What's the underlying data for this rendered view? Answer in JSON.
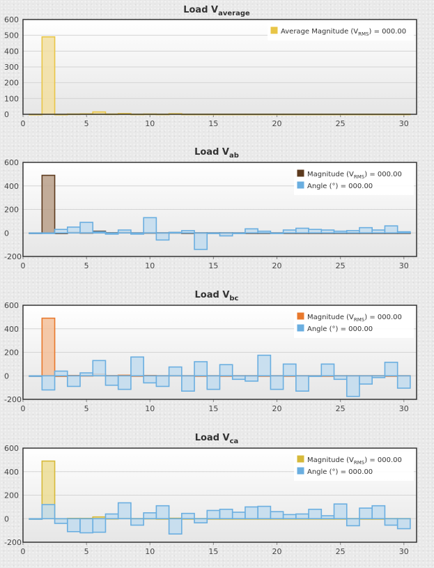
{
  "chart_data": [
    {
      "type": "bar",
      "title": "Load V",
      "title_sub": "average",
      "xlim": [
        0,
        31
      ],
      "ylim": [
        0,
        600
      ],
      "yticks": [
        0,
        100,
        200,
        300,
        400,
        500,
        600
      ],
      "xticks": [
        0,
        5,
        10,
        15,
        20,
        25,
        30
      ],
      "legend_position": "top-right",
      "series": [
        {
          "name": "Average Magnitude (VRMS) = 000.00",
          "legend_label": "Average Magnitude (V",
          "legend_sub": "RMS",
          "legend_suffix": ") = 000.00",
          "color": "#e8c547",
          "fill": "#f2dfa2",
          "values": [
            0,
            490,
            0,
            2,
            3,
            15,
            2,
            5,
            1,
            2,
            1,
            4,
            1,
            1,
            1,
            1,
            1,
            1,
            1,
            1,
            1,
            1,
            1,
            1,
            1,
            1,
            1,
            1,
            1,
            1,
            1
          ]
        }
      ]
    },
    {
      "type": "bar",
      "title": "Load V",
      "title_sub": "ab",
      "xlim": [
        0,
        31
      ],
      "ylim": [
        -200,
        600
      ],
      "yticks": [
        -200,
        0,
        200,
        400,
        600
      ],
      "xticks": [
        0,
        5,
        10,
        15,
        20,
        25,
        30
      ],
      "legend_position": "top-right",
      "series": [
        {
          "name": "Magnitude (VRMS) = 000.00",
          "legend_label": "Magnitude (V",
          "legend_sub": "RMS",
          "legend_suffix": ") = 000.00",
          "color": "#5c3a1e",
          "fill": "#b89f88",
          "values": [
            0,
            490,
            0,
            5,
            3,
            15,
            2,
            5,
            1,
            3,
            1,
            4,
            1,
            1,
            1,
            1,
            1,
            1,
            1,
            1,
            1,
            1,
            1,
            1,
            1,
            1,
            1,
            1,
            1,
            1,
            1
          ]
        },
        {
          "name": "Angle (°) = 000.00",
          "legend_label": "Angle (°) = 000.00",
          "color": "#6aaee0",
          "fill": "#c2dcef",
          "values": [
            0,
            0,
            30,
            50,
            90,
            10,
            -10,
            25,
            -10,
            130,
            -60,
            5,
            20,
            -140,
            0,
            -25,
            0,
            35,
            15,
            0,
            25,
            40,
            30,
            25,
            15,
            20,
            45,
            25,
            60,
            10,
            5
          ]
        }
      ]
    },
    {
      "type": "bar",
      "title": "Load V",
      "title_sub": "bc",
      "xlim": [
        0,
        31
      ],
      "ylim": [
        -200,
        600
      ],
      "yticks": [
        -200,
        0,
        200,
        400,
        600
      ],
      "xticks": [
        0,
        5,
        10,
        15,
        20,
        25,
        30
      ],
      "legend_position": "top-right",
      "series": [
        {
          "name": "Magnitude (VRMS) = 000.00",
          "legend_label": "Magnitude (V",
          "legend_sub": "RMS",
          "legend_suffix": ") = 000.00",
          "color": "#e8782c",
          "fill": "#f3c09a",
          "values": [
            0,
            490,
            0,
            3,
            3,
            15,
            2,
            5,
            1,
            3,
            1,
            4,
            1,
            1,
            1,
            1,
            1,
            1,
            1,
            1,
            1,
            1,
            1,
            1,
            1,
            1,
            1,
            1,
            1,
            1,
            1
          ]
        },
        {
          "name": "Angle (°) = 000.00",
          "legend_label": "Angle (°) = 000.00",
          "color": "#6aaee0",
          "fill": "#c2dcef",
          "values": [
            0,
            -120,
            40,
            -90,
            25,
            130,
            -80,
            -115,
            160,
            -60,
            -90,
            75,
            -130,
            120,
            -115,
            95,
            -30,
            -45,
            175,
            -115,
            100,
            -130,
            0,
            100,
            -30,
            -175,
            -70,
            -15,
            115,
            -105,
            115
          ]
        }
      ]
    },
    {
      "type": "bar",
      "title": "Load V",
      "title_sub": "ca",
      "xlim": [
        0,
        31
      ],
      "ylim": [
        -200,
        600
      ],
      "yticks": [
        -200,
        0,
        200,
        400,
        600
      ],
      "xticks": [
        0,
        5,
        10,
        15,
        20,
        25,
        30
      ],
      "legend_position": "top-right",
      "series": [
        {
          "name": "Magnitude (VRMS) = 000.00",
          "legend_label": "Magnitude (V",
          "legend_sub": "RMS",
          "legend_suffix": ") = 000.00",
          "color": "#d6b93a",
          "fill": "#ecdd95",
          "values": [
            0,
            490,
            0,
            3,
            3,
            15,
            2,
            5,
            1,
            3,
            1,
            4,
            1,
            1,
            1,
            1,
            1,
            1,
            1,
            1,
            1,
            1,
            1,
            1,
            1,
            1,
            1,
            1,
            1,
            1,
            1
          ]
        },
        {
          "name": "Angle (°) = 000.00",
          "legend_label": "Angle (°) = 000.00",
          "color": "#6aaee0",
          "fill": "#c2dcef",
          "values": [
            0,
            120,
            -40,
            -110,
            -120,
            -115,
            40,
            135,
            -55,
            50,
            110,
            -130,
            45,
            -35,
            70,
            80,
            55,
            100,
            105,
            60,
            35,
            40,
            80,
            25,
            125,
            -60,
            90,
            110,
            -55,
            -85,
            0
          ]
        }
      ]
    }
  ]
}
